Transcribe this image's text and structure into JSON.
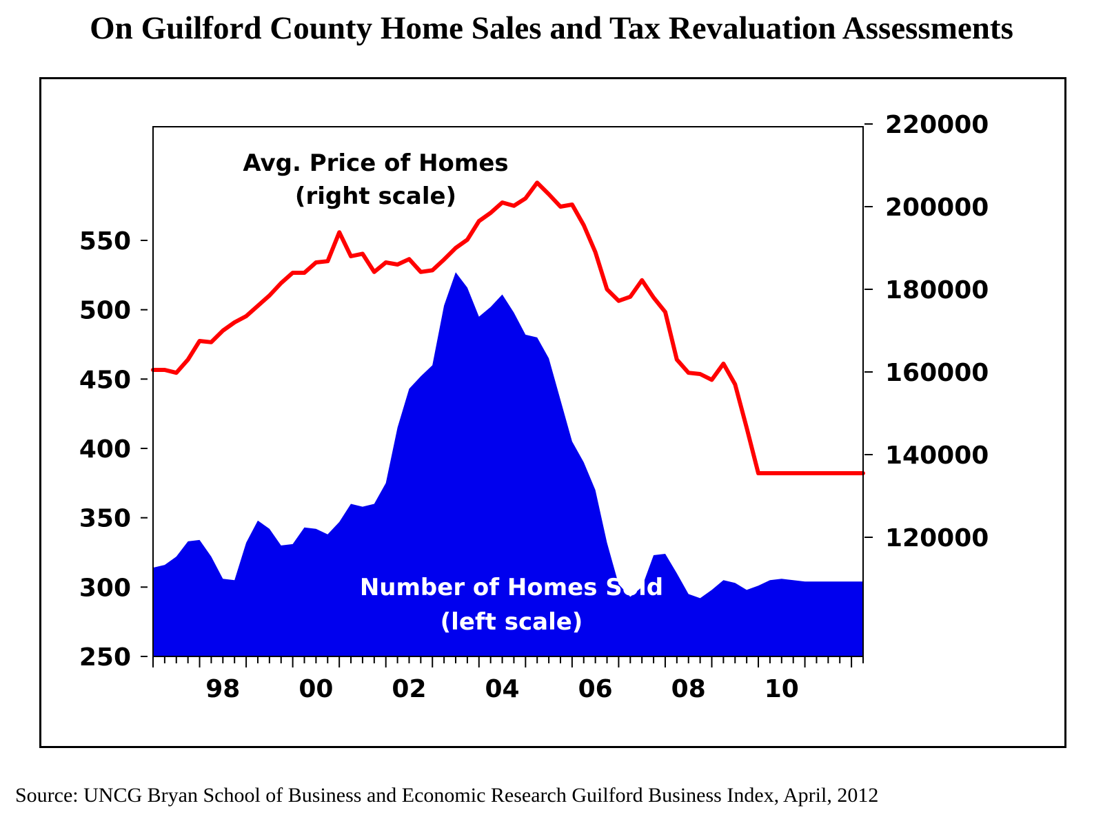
{
  "title": "On Guilford County Home Sales and Tax Revaluation Assessments",
  "source": "Source: UNCG Bryan School of Business and Economic Research Guilford Business Index, April, 2012",
  "chart_data": {
    "type": "area",
    "colors": {
      "homes_sold": "#0000ee",
      "avg_price": "#ff0000"
    },
    "annotations": {
      "price_line1": "Avg. Price of Homes",
      "price_line2": "(right scale)",
      "sold_line1": "Number of Homes Sold",
      "sold_line2": "(left scale)"
    },
    "x_ticks": [
      "98",
      "00",
      "02",
      "04",
      "06",
      "08",
      "10"
    ],
    "y_left": {
      "range": [
        250,
        600
      ],
      "ticks": [
        "250",
        "300",
        "350",
        "400",
        "450",
        "500",
        "550"
      ]
    },
    "y_right": {
      "range": [
        100000,
        220000
      ],
      "ticks": [
        "120000",
        "140000",
        "160000",
        "180000",
        "200000",
        "220000"
      ]
    },
    "x_range": [
      1997.0,
      2012.25
    ],
    "series": [
      {
        "name": "Number of Homes Sold",
        "axis": "left",
        "style": "area",
        "x": [
          1997.0,
          1997.25,
          1997.5,
          1997.75,
          1998.0,
          1998.25,
          1998.5,
          1998.75,
          1999.0,
          1999.25,
          1999.5,
          1999.75,
          2000.0,
          2000.25,
          2000.5,
          2000.75,
          2001.0,
          2001.25,
          2001.5,
          2001.75,
          2002.0,
          2002.25,
          2002.5,
          2002.75,
          2003.0,
          2003.25,
          2003.5,
          2003.75,
          2004.0,
          2004.25,
          2004.5,
          2004.75,
          2005.0,
          2005.25,
          2005.5,
          2005.75,
          2006.0,
          2006.25,
          2006.5,
          2006.75,
          2007.0,
          2007.25,
          2007.5,
          2007.75,
          2008.0,
          2008.25,
          2008.5,
          2008.75,
          2009.0,
          2009.25,
          2009.5,
          2009.75,
          2010.0,
          2010.25,
          2010.5,
          2010.75,
          2011.0,
          2011.25,
          2011.5,
          2011.75,
          2012.0,
          2012.25
        ],
        "values": [
          314,
          316,
          322,
          333,
          334,
          322,
          306,
          305,
          332,
          348,
          342,
          330,
          331,
          343,
          342,
          338,
          347,
          360,
          358,
          360,
          375,
          415,
          443,
          452,
          460,
          503,
          527,
          516,
          495,
          502,
          511,
          498,
          482,
          480,
          465,
          435,
          405,
          390,
          370,
          332,
          302,
          293,
          300,
          323,
          324,
          310,
          295,
          292,
          298,
          305,
          303,
          298,
          301,
          305,
          306,
          305,
          304,
          304,
          304,
          304,
          304,
          304
        ]
      },
      {
        "name": "Avg. Price of Homes",
        "axis": "right",
        "style": "line",
        "x": [
          1997.0,
          1997.25,
          1997.5,
          1997.75,
          1998.0,
          1998.25,
          1998.5,
          1998.75,
          1999.0,
          1999.25,
          1999.5,
          1999.75,
          2000.0,
          2000.25,
          2000.5,
          2000.75,
          2001.0,
          2001.25,
          2001.5,
          2001.75,
          2002.0,
          2002.25,
          2002.5,
          2002.75,
          2003.0,
          2003.25,
          2003.5,
          2003.75,
          2004.0,
          2004.25,
          2004.5,
          2004.75,
          2005.0,
          2005.25,
          2005.5,
          2005.75,
          2006.0,
          2006.25,
          2006.5,
          2006.75,
          2007.0,
          2007.25,
          2007.5,
          2007.75,
          2008.0,
          2008.25,
          2008.5,
          2008.75,
          2009.0,
          2009.25,
          2009.5,
          2009.75,
          2010.0,
          2010.25,
          2010.5,
          2010.75,
          2011.0,
          2011.25,
          2011.5,
          2011.75,
          2012.0,
          2012.25
        ],
        "values": [
          160500,
          160500,
          159800,
          163000,
          167500,
          167200,
          170000,
          172000,
          173500,
          176000,
          178500,
          181500,
          184000,
          184000,
          186500,
          186800,
          193800,
          188000,
          188600,
          184200,
          186500,
          186000,
          187300,
          184200,
          184600,
          187200,
          190000,
          192000,
          196500,
          198500,
          201000,
          200200,
          202000,
          205800,
          203000,
          200000,
          200500,
          195500,
          189000,
          180000,
          177200,
          178200,
          182200,
          178000,
          174500,
          163000,
          159800,
          159500,
          158100,
          162000,
          157000,
          146500,
          135500,
          135500,
          135500,
          135500,
          135500,
          135500,
          135500,
          135500,
          135500,
          135500
        ]
      }
    ]
  }
}
